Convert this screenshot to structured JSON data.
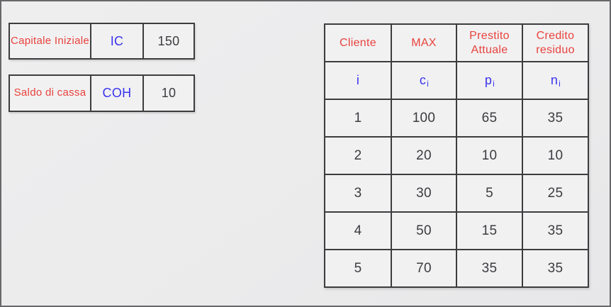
{
  "colors": {
    "label_red": "#e8423c",
    "symbol_blue": "#3a34ee",
    "value_dark": "#3c3c40",
    "table_border": "#3d3d3f",
    "cell_background": "#f1f1f2",
    "page_background": "#ebebec",
    "frame_border": "#68686b"
  },
  "parameters": [
    {
      "label": "Capitale Iniziale",
      "code": "IC",
      "value": "150"
    },
    {
      "label": "Saldo di cassa",
      "code": "COH",
      "value": "10"
    }
  ],
  "clients_table": {
    "headers": [
      "Cliente",
      "MAX",
      "Prestito Attuale",
      "Credito residuo"
    ],
    "symbols": [
      {
        "base": "i",
        "sub": ""
      },
      {
        "base": "c",
        "sub": "i"
      },
      {
        "base": "p",
        "sub": "i"
      },
      {
        "base": "n",
        "sub": "i"
      }
    ],
    "rows": [
      [
        "1",
        "100",
        "65",
        "35"
      ],
      [
        "2",
        "20",
        "10",
        "10"
      ],
      [
        "3",
        "30",
        "5",
        "25"
      ],
      [
        "4",
        "50",
        "15",
        "35"
      ],
      [
        "5",
        "70",
        "35",
        "35"
      ]
    ]
  }
}
